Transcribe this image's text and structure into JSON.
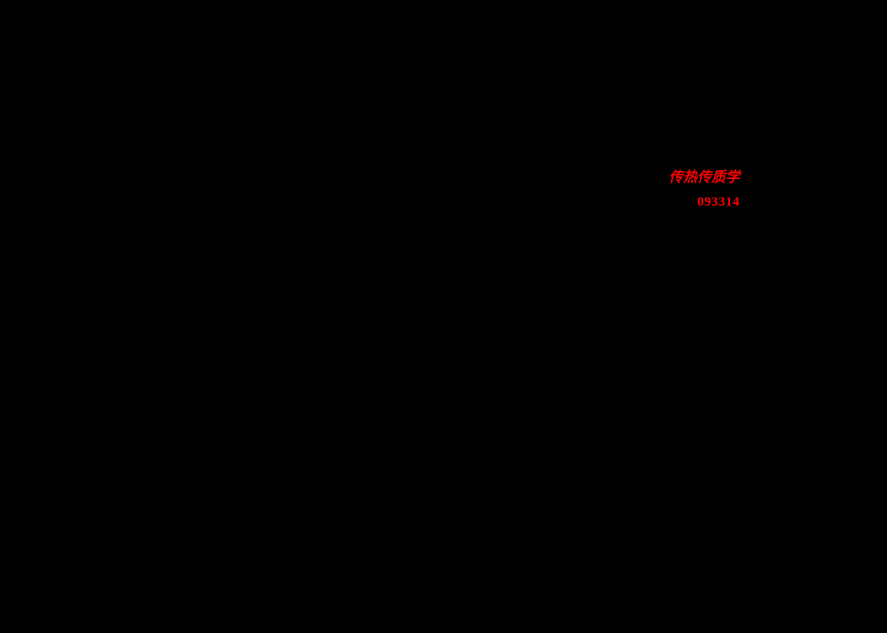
{
  "page": {
    "background_color": "#000000",
    "accent_color": "#ff0000"
  },
  "header": {
    "course_title": "传热传质学",
    "course_code": "093314"
  }
}
